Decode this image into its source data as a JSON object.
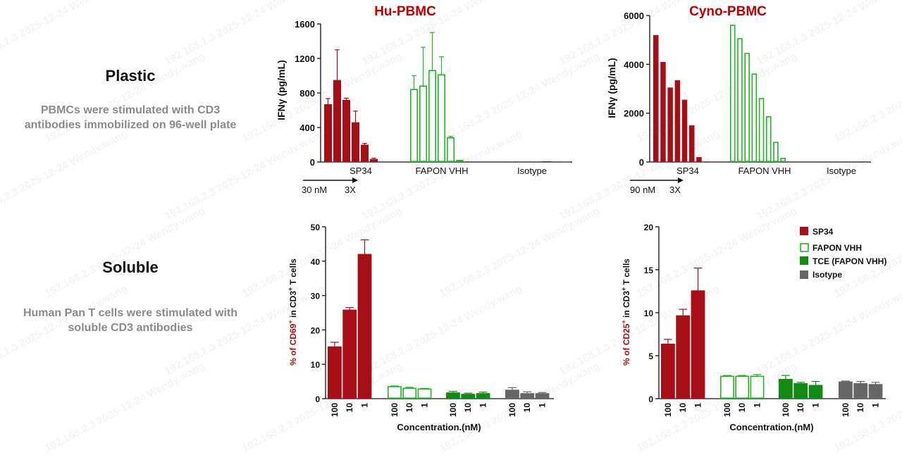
{
  "left_panel": {
    "plastic_title": "Plastic",
    "plastic_desc_line1": "PBMCs were stimulated with CD3",
    "plastic_desc_line2": "antibodies  immobilized on 96-well plate",
    "soluble_title": "Soluble",
    "soluble_desc_line1": "Human Pan T cells were stimulated with",
    "soluble_desc_line2": "soluble CD3 antibodies"
  },
  "watermark": {
    "text": "192.168.2.3  2025-12-24  Wendy.wang"
  },
  "colors": {
    "sp34": "#a50f15",
    "fapon": "#22b422",
    "tce": "#138a13",
    "isotype": "#666666",
    "title_red": "#c00000",
    "ylabel_red": "#a50f15"
  },
  "legend": {
    "items": [
      "SP34",
      "FAPON VHH",
      "TCE (FAPON VHH)",
      "Isotype"
    ]
  },
  "chart_data": [
    {
      "type": "bar",
      "title": "Hu-PBMC",
      "ylabel": "IFNγ (pg/mL)",
      "ylim": [
        0,
        1600
      ],
      "yticks": [
        "0",
        "400",
        "800",
        "1200",
        "1600"
      ],
      "group_labels": [
        "SP34",
        "FAPON VHH",
        "Isotype"
      ],
      "dose_note": "30 nM",
      "dilution_note": "3X",
      "series": [
        {
          "name": "SP34",
          "values": [
            670,
            950,
            720,
            460,
            200,
            35,
            5,
            0
          ],
          "errors": [
            65,
            350,
            20,
            130,
            15,
            10,
            0,
            0
          ]
        },
        {
          "name": "FAPON VHH",
          "values": [
            840,
            880,
            1060,
            1010,
            280,
            15,
            5,
            2
          ],
          "errors": [
            160,
            450,
            440,
            210,
            15,
            5,
            0,
            0
          ]
        },
        {
          "name": "Isotype",
          "values": [
            0,
            5,
            0,
            0,
            0,
            8,
            0,
            3
          ],
          "errors": [
            0,
            0,
            0,
            0,
            0,
            0,
            0,
            0
          ]
        }
      ]
    },
    {
      "type": "bar",
      "title": "Cyno-PBMC",
      "ylabel": "IFNγ (pg/mL)",
      "ylim": [
        0,
        6000
      ],
      "yticks": [
        "0",
        "2000",
        "4000",
        "6000"
      ],
      "group_labels": [
        "SP34",
        "FAPON VHH",
        "Isotype"
      ],
      "dose_note": "90 nM",
      "dilution_note": "3X",
      "series": [
        {
          "name": "SP34",
          "values": [
            5200,
            4100,
            3050,
            3350,
            2550,
            1500,
            200,
            20
          ],
          "errors": [
            0,
            0,
            0,
            0,
            0,
            0,
            0,
            0
          ]
        },
        {
          "name": "FAPON VHH",
          "values": [
            5600,
            5050,
            4450,
            3600,
            2600,
            1850,
            800,
            150
          ],
          "errors": [
            0,
            0,
            0,
            0,
            0,
            0,
            0,
            0
          ]
        },
        {
          "name": "Isotype",
          "values": [
            0,
            0,
            0,
            0,
            0,
            0,
            0,
            0
          ],
          "errors": [
            0,
            0,
            0,
            0,
            0,
            0,
            0,
            0
          ]
        }
      ]
    },
    {
      "type": "bar",
      "ylabel_prefix": "% of CD69",
      "ylabel_sup": "+",
      "ylabel_suffix": " in CD3",
      "ylabel_sup2": "+",
      "ylabel_end": " T cells",
      "xlabel": "Concentration.(nM)",
      "ylim": [
        0,
        50
      ],
      "yticks": [
        "0",
        "10",
        "20",
        "30",
        "40",
        "50"
      ],
      "categories": [
        "100",
        "10",
        "1"
      ],
      "series": [
        {
          "name": "SP34",
          "values": [
            15.2,
            25.9,
            42.1
          ],
          "errors": [
            1.2,
            0.6,
            4.1
          ]
        },
        {
          "name": "FAPON VHH",
          "values": [
            3.5,
            3.0,
            2.8
          ],
          "errors": [
            0.2,
            0.3,
            0.2
          ]
        },
        {
          "name": "TCE (FAPON VHH)",
          "values": [
            1.8,
            1.4,
            1.6
          ],
          "errors": [
            0.3,
            0.2,
            0.3
          ]
        },
        {
          "name": "Isotype",
          "values": [
            2.6,
            1.6,
            1.6
          ],
          "errors": [
            0.6,
            0.4,
            0.2
          ]
        }
      ]
    },
    {
      "type": "bar",
      "ylabel_prefix": "% of CD25",
      "ylabel_sup": "+",
      "ylabel_suffix": " in CD3",
      "ylabel_sup2": "+",
      "ylabel_end": " T cells",
      "xlabel": "Concentration.(nM)",
      "ylim": [
        0,
        20
      ],
      "yticks": [
        "0",
        "5",
        "10",
        "15",
        "20"
      ],
      "categories": [
        "100",
        "10",
        "1"
      ],
      "series": [
        {
          "name": "SP34",
          "values": [
            6.4,
            9.7,
            12.6
          ],
          "errors": [
            0.5,
            0.7,
            2.6
          ]
        },
        {
          "name": "FAPON VHH",
          "values": [
            2.6,
            2.6,
            2.6
          ],
          "errors": [
            0.1,
            0.1,
            0.2
          ]
        },
        {
          "name": "TCE (FAPON VHH)",
          "values": [
            2.3,
            1.8,
            1.6
          ],
          "errors": [
            0.4,
            0.1,
            0.4
          ]
        },
        {
          "name": "Isotype",
          "values": [
            2.0,
            1.8,
            1.7
          ],
          "errors": [
            0.05,
            0.2,
            0.2
          ]
        }
      ]
    }
  ]
}
